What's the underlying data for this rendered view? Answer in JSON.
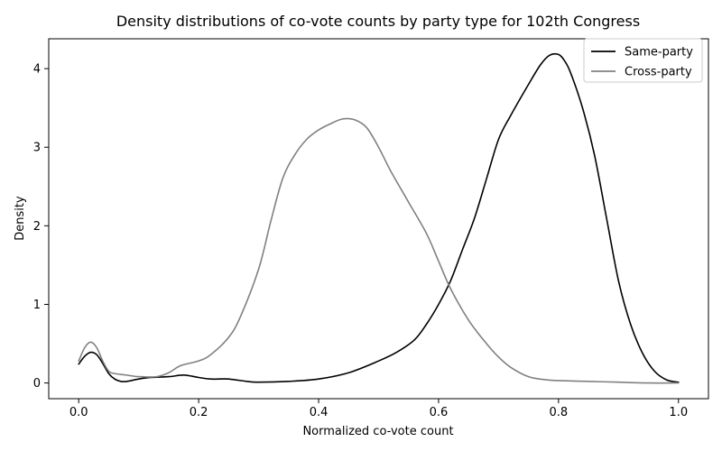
{
  "chart_data": {
    "type": "line",
    "title": "Density distributions of co-vote counts by party type for 102th Congress",
    "xlabel": "Normalized co-vote count",
    "ylabel": "Density",
    "xlim": [
      -0.05,
      1.05
    ],
    "ylim": [
      -0.2,
      4.38
    ],
    "xticks": [
      0.0,
      0.2,
      0.4,
      0.6,
      0.8,
      1.0
    ],
    "xtick_labels": [
      "0.0",
      "0.2",
      "0.4",
      "0.6",
      "0.8",
      "1.0"
    ],
    "yticks": [
      0,
      1,
      2,
      3,
      4
    ],
    "ytick_labels": [
      "0",
      "1",
      "2",
      "3",
      "4"
    ],
    "grid": false,
    "legend": "top-right",
    "series": [
      {
        "name": "Same-party",
        "color": "#000000",
        "x": [
          0.0,
          0.01,
          0.02,
          0.03,
          0.04,
          0.05,
          0.06,
          0.07,
          0.08,
          0.1,
          0.12,
          0.15,
          0.175,
          0.2,
          0.22,
          0.25,
          0.28,
          0.3,
          0.35,
          0.4,
          0.45,
          0.5,
          0.53,
          0.56,
          0.58,
          0.6,
          0.62,
          0.64,
          0.66,
          0.68,
          0.7,
          0.72,
          0.75,
          0.77,
          0.785,
          0.8,
          0.81,
          0.82,
          0.84,
          0.86,
          0.88,
          0.9,
          0.92,
          0.94,
          0.96,
          0.98,
          1.0
        ],
        "y": [
          0.24,
          0.34,
          0.39,
          0.36,
          0.25,
          0.12,
          0.05,
          0.02,
          0.02,
          0.05,
          0.07,
          0.08,
          0.1,
          0.07,
          0.05,
          0.05,
          0.02,
          0.01,
          0.02,
          0.05,
          0.13,
          0.28,
          0.39,
          0.55,
          0.75,
          1.0,
          1.3,
          1.7,
          2.1,
          2.6,
          3.1,
          3.4,
          3.8,
          4.05,
          4.17,
          4.18,
          4.1,
          3.95,
          3.5,
          2.9,
          2.1,
          1.3,
          0.75,
          0.38,
          0.15,
          0.04,
          0.01
        ]
      },
      {
        "name": "Cross-party",
        "color": "#808080",
        "x": [
          0.0,
          0.01,
          0.02,
          0.03,
          0.04,
          0.05,
          0.06,
          0.08,
          0.1,
          0.13,
          0.15,
          0.17,
          0.2,
          0.22,
          0.25,
          0.27,
          0.3,
          0.32,
          0.34,
          0.36,
          0.38,
          0.4,
          0.42,
          0.44,
          0.46,
          0.48,
          0.5,
          0.52,
          0.55,
          0.58,
          0.6,
          0.62,
          0.65,
          0.68,
          0.7,
          0.72,
          0.75,
          0.78,
          0.8,
          0.85,
          0.9,
          0.95,
          1.0
        ],
        "y": [
          0.28,
          0.45,
          0.52,
          0.45,
          0.28,
          0.15,
          0.12,
          0.1,
          0.08,
          0.08,
          0.13,
          0.22,
          0.28,
          0.36,
          0.58,
          0.85,
          1.45,
          2.05,
          2.6,
          2.9,
          3.1,
          3.22,
          3.3,
          3.36,
          3.35,
          3.25,
          3.0,
          2.7,
          2.3,
          1.9,
          1.55,
          1.2,
          0.8,
          0.5,
          0.33,
          0.2,
          0.08,
          0.04,
          0.03,
          0.02,
          0.01,
          0.0,
          0.0
        ]
      }
    ]
  }
}
